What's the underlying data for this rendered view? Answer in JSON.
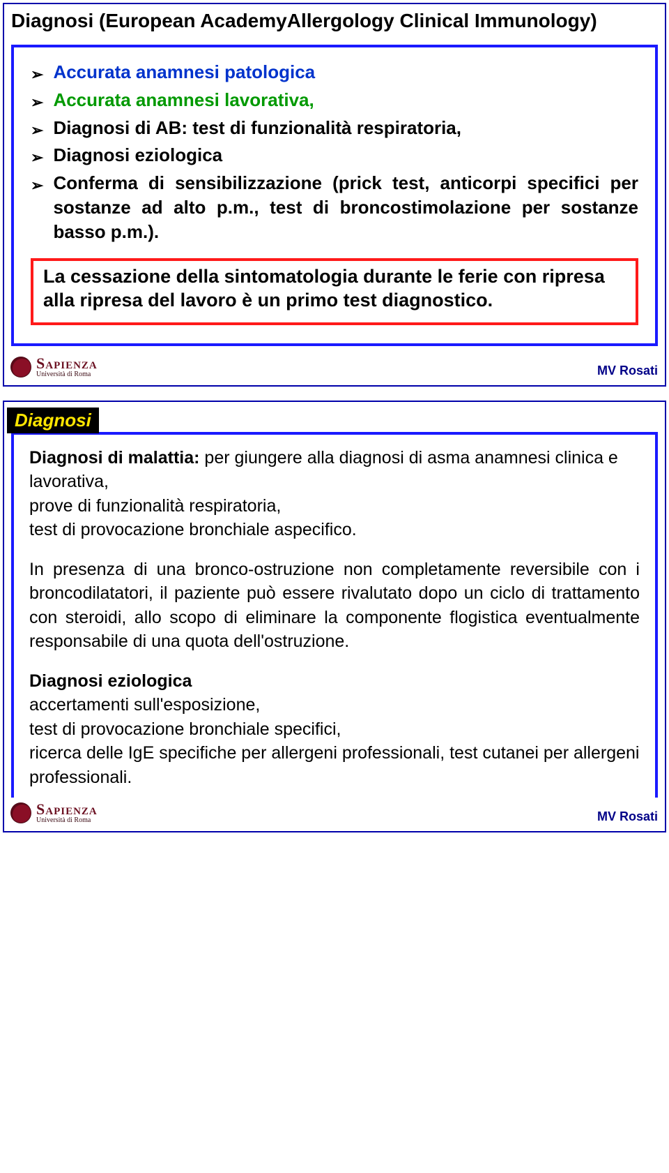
{
  "colors": {
    "slide_border": "#0000aa",
    "blue_box_border": "#1a1aff",
    "red_box_border": "#ff1a1a",
    "blue_text": "#0033cc",
    "green_text": "#009900",
    "yellow_title": "#ffe600",
    "author_color": "#000088",
    "logo_color": "#8a0f26",
    "background": "#ffffff",
    "text": "#000000"
  },
  "typography": {
    "base_family": "Comic Sans MS",
    "title_size_pt": 28,
    "body_size_pt": 26,
    "redbox_size_pt": 27,
    "slide2_body_pt": 25,
    "author_pt": 18,
    "logo_main_pt": 22,
    "logo_sub_pt": 10
  },
  "slide1": {
    "title": "Diagnosi (European AcademyAllergology Clinical Immunology)",
    "bullets": [
      {
        "text": "Accurata anamnesi patologica",
        "color": "blue"
      },
      {
        "text": "Accurata anamnesi lavorativa,",
        "color": "green"
      },
      {
        "text": "Diagnosi di AB: test di funzionalità respiratoria,",
        "color": "black"
      },
      {
        "text": "Diagnosi eziologica",
        "color": "black"
      },
      {
        "text": "Conferma di sensibilizzazione (prick test, anticorpi specifici per sostanze ad alto p.m., test di broncostimolazione per sostanze basso p.m.).",
        "color": "black",
        "justify": true
      }
    ],
    "red_box": "La cessazione della sintomatologia durante le ferie con ripresa alla ripresa del lavoro è un primo test diagnostico."
  },
  "slide2": {
    "section_label": "Diagnosi",
    "p1_lead": "Diagnosi di malattia:",
    "p1_rest": " per giungere alla diagnosi di asma anamnesi clinica e lavorativa,\nprove di funzionalità respiratoria,\ntest di provocazione bronchiale aspecifico.",
    "p2": "In presenza di una bronco-ostruzione non completamente reversibile con i broncodilatatori, il paziente può essere rivalutato dopo un ciclo di trattamento con steroidi, allo scopo di eliminare la componente flogistica eventualmente responsabile di una quota dell'ostruzione.",
    "p3_lead": "Diagnosi eziologica",
    "p3_rest": "accertamenti sull'esposizione,\ntest di provocazione bronchiale specifici,\nricerca delle IgE specifiche per allergeni professionali, test cutanei per allergeni professionali."
  },
  "footer": {
    "logo_main": "Sapienza",
    "logo_sub": "Università di Roma",
    "author": "MV Rosati"
  }
}
